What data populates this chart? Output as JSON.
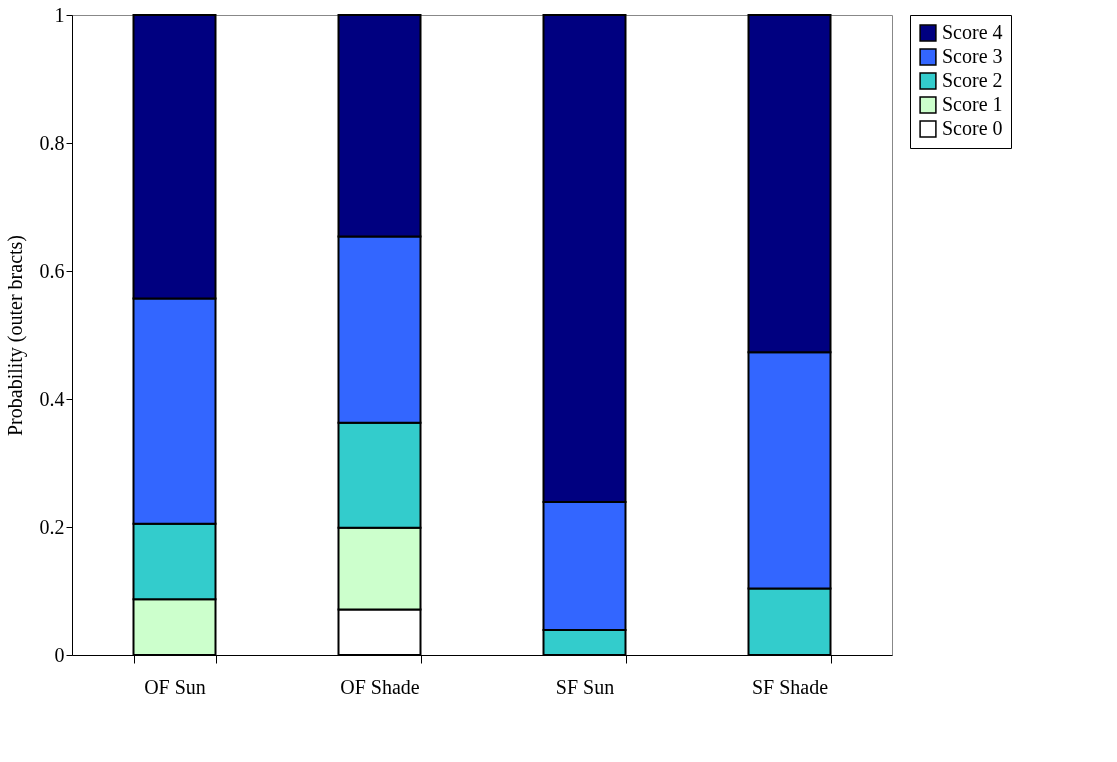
{
  "chart_data": {
    "type": "bar",
    "stacked": true,
    "ylabel": "Probability (outer bracts)",
    "categories": [
      "OF Sun",
      "OF Shade",
      "SF Sun",
      "SF Shade"
    ],
    "series": [
      {
        "name": "Score 0",
        "color": "#ffffff",
        "values": [
          0,
          0.071,
          0,
          0
        ]
      },
      {
        "name": "Score 1",
        "color": "#ccffcc",
        "values": [
          0.087,
          0.128,
          0,
          0
        ]
      },
      {
        "name": "Score 2",
        "color": "#33cccc",
        "values": [
          0.118,
          0.164,
          0.039,
          0.104
        ]
      },
      {
        "name": "Score 3",
        "color": "#3366ff",
        "values": [
          0.352,
          0.291,
          0.2,
          0.369
        ]
      },
      {
        "name": "Score 4",
        "color": "#000080",
        "values": [
          0.443,
          0.346,
          0.761,
          0.527
        ]
      }
    ],
    "ylim": [
      0,
      1
    ],
    "yticks": [
      0,
      0.2,
      0.4,
      0.6,
      0.8,
      1
    ],
    "grid": false,
    "legend": "right"
  }
}
